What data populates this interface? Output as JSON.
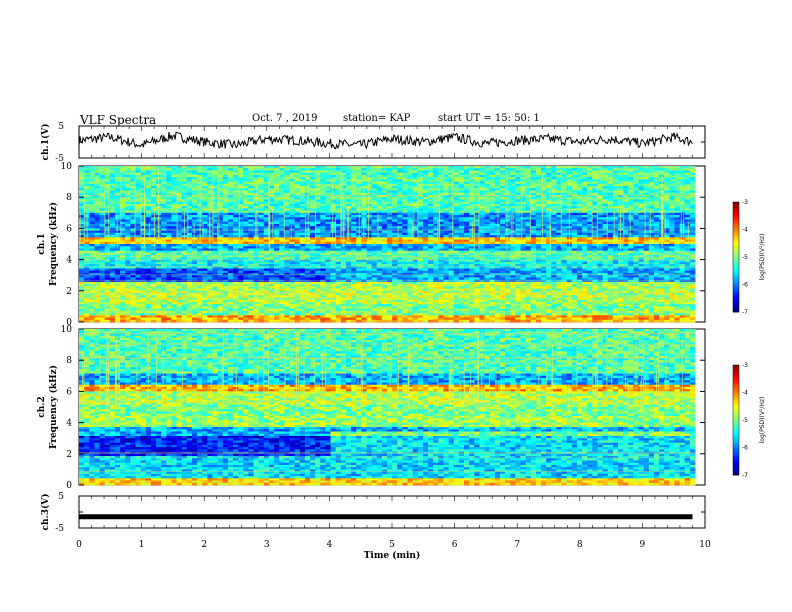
{
  "header": {
    "title": "VLF Spectra",
    "date": "Oct. 7 , 2019",
    "station": "station= KAP",
    "start": "start  UT =   15: 50: 1"
  },
  "colors": {
    "cmap": [
      "#00007f",
      "#0000ff",
      "#007fff",
      "#00ffff",
      "#7fff7f",
      "#ffff00",
      "#ff7f00",
      "#ff0000",
      "#7f0000"
    ]
  },
  "chart_data": [
    {
      "type": "line",
      "name": "ch1-waveform",
      "ylabel": "ch.1(V)",
      "ylim": [
        -5,
        5
      ],
      "yticks": [
        5,
        -5
      ],
      "xlim": [
        0,
        10
      ],
      "x": [
        0,
        0.5,
        1,
        1.5,
        2,
        2.5,
        3,
        3.5,
        4,
        4.5,
        5,
        5.5,
        6,
        6.5,
        7,
        7.5,
        8,
        8.5,
        9,
        9.5,
        9.8
      ],
      "y": [
        0.5,
        1.5,
        -1,
        2,
        0,
        -1,
        1,
        0.5,
        -0.5,
        -1,
        1,
        0,
        1.5,
        -0.5,
        0.5,
        1,
        0,
        1,
        -0.5,
        1.5,
        0
      ]
    },
    {
      "type": "heatmap",
      "name": "ch1-spectrogram",
      "ylabel": "ch.1\nFrequency  (kHz)",
      "xlim": [
        0,
        10
      ],
      "ylim": [
        0,
        10
      ],
      "yticks": [
        "0",
        "2",
        "4",
        "6",
        "8",
        "10"
      ],
      "colorbar": {
        "label": "log(PSD)(V²/Hz)",
        "range": [
          -7,
          -3
        ],
        "ticks": [
          "-3",
          "-4",
          "-5",
          "-6",
          "-7"
        ]
      },
      "bands": [
        {
          "f": [
            0,
            0.5
          ],
          "v": -4.2
        },
        {
          "f": [
            0.5,
            1.2
          ],
          "v": -5.0
        },
        {
          "f": [
            1.2,
            2.6
          ],
          "v": -4.8
        },
        {
          "f": [
            2.6,
            3.4
          ],
          "v": -6.2
        },
        {
          "f": [
            3.4,
            4.0
          ],
          "v": -5.5
        },
        {
          "f": [
            4.0,
            4.6
          ],
          "v": -5.2
        },
        {
          "f": [
            4.6,
            5.0
          ],
          "v": -5.8
        },
        {
          "f": [
            5.0,
            5.4
          ],
          "v": -4.3
        },
        {
          "f": [
            5.4,
            7.0
          ],
          "v": -5.9
        },
        {
          "f": [
            7.0,
            10.0
          ],
          "v": -5.2
        }
      ]
    },
    {
      "type": "heatmap",
      "name": "ch2-spectrogram",
      "ylabel": "ch.2\nFrequency  (kHz)",
      "xlim": [
        0,
        10
      ],
      "ylim": [
        0,
        10
      ],
      "yticks": [
        "0",
        "2",
        "4",
        "6",
        "8",
        "10"
      ],
      "colorbar": {
        "label": "log(PSD)(V²/Hz)",
        "range": [
          -7,
          -3
        ],
        "ticks": [
          "-3",
          "-4",
          "-5",
          "-6",
          "-7"
        ]
      },
      "bands": [
        {
          "f": [
            0,
            0.4
          ],
          "v": -4.3
        },
        {
          "f": [
            0.4,
            1.8
          ],
          "v": -5.6
        },
        {
          "f": [
            1.8,
            3.2
          ],
          "v": -6.4
        },
        {
          "f": [
            3.2,
            3.7
          ],
          "v": -5.8
        },
        {
          "f": [
            3.7,
            4.4
          ],
          "v": -4.9
        },
        {
          "f": [
            4.4,
            5.2
          ],
          "v": -5.0
        },
        {
          "f": [
            5.2,
            6.0
          ],
          "v": -4.8
        },
        {
          "f": [
            6.0,
            6.4
          ],
          "v": -4.2
        },
        {
          "f": [
            6.4,
            7.2
          ],
          "v": -5.8
        },
        {
          "f": [
            7.2,
            10.0
          ],
          "v": -5.2
        }
      ]
    },
    {
      "type": "line",
      "name": "ch3-waveform",
      "ylabel": "ch.3(V)",
      "ylim": [
        -5,
        5
      ],
      "yticks": [
        5,
        -5
      ],
      "xlim": [
        0,
        10
      ],
      "xlabel": "Time  (min)",
      "xticks": [
        "0",
        "1",
        "2",
        "3",
        "4",
        "5",
        "6",
        "7",
        "8",
        "9",
        "10"
      ],
      "x": [
        0,
        9.8
      ],
      "y": [
        -1.5,
        -1.5
      ]
    }
  ]
}
